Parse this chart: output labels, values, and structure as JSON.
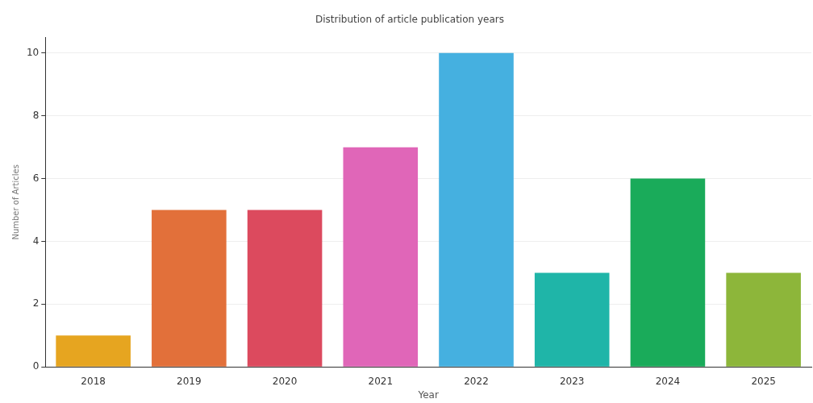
{
  "chart_data": {
    "type": "bar",
    "title": "Distribution of article publication years",
    "xlabel": "Year",
    "ylabel": "Number of Articles",
    "categories": [
      "2018",
      "2019",
      "2020",
      "2021",
      "2022",
      "2023",
      "2024",
      "2025"
    ],
    "values": [
      1,
      5,
      5,
      7,
      10,
      3,
      6,
      3
    ],
    "colors": [
      "#e6a520",
      "#e2703a",
      "#dc4a5e",
      "#e066b8",
      "#45b0e0",
      "#1fb5a8",
      "#1aab5a",
      "#8db63a"
    ],
    "ylim": [
      0,
      10.5
    ],
    "yticks": [
      0,
      2,
      4,
      6,
      8,
      10
    ],
    "grid": "y",
    "legend": false
  }
}
